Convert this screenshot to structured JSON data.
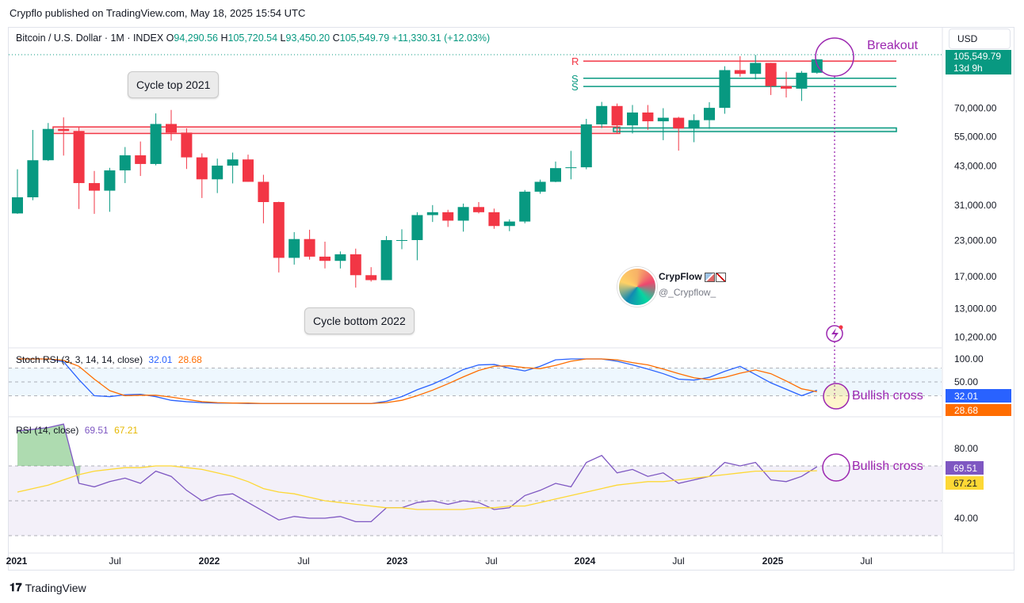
{
  "header": "Crypflo published on TradingView.com, May 18, 2025 15:54 UTC",
  "symbol": {
    "title": "Bitcoin / U.S. Dollar · 1M · INDEX",
    "o_label": "O",
    "o": "94,290.56",
    "h_label": "H",
    "h": "105,720.54",
    "l_label": "L",
    "l": "93,450.20",
    "c_label": "C",
    "c": "105,549.79",
    "change": "+11,330.31 (+12.03%)"
  },
  "currency_button": "USD",
  "price_badge": {
    "price": "105,549.79",
    "countdown": "13d 9h"
  },
  "author": {
    "name": "CrypFlow",
    "handle": "@_Crypflow_"
  },
  "callouts": {
    "top": "Cycle top 2021",
    "bottom": "Cycle bottom 2022"
  },
  "annotations": {
    "breakout": "Breakout",
    "bullish_cross_stoch": "Bullish cross",
    "bullish_cross_rsi": "Bullish cross"
  },
  "level_labels": {
    "r": "R",
    "s1": "S",
    "s2": "S"
  },
  "stoch_legend": {
    "title": "Stoch RSI (3, 3, 14, 14, close)",
    "k": "32.01",
    "d": "28.68"
  },
  "rsi_legend": {
    "title": "RSI (14, close)",
    "rsi": "69.51",
    "ma": "67.21"
  },
  "footer": "TradingView",
  "colors": {
    "up": "#089981",
    "down": "#f23645",
    "stoch_k": "#2962ff",
    "stoch_d": "#ff6d00",
    "rsi": "#7e57c2",
    "rsi_ma": "#fdd835",
    "annotation": "#9c27b0"
  },
  "chart_data": [
    {
      "type": "candlestick",
      "title": "Bitcoin / U.S. Dollar · 1M · INDEX",
      "scale": "log",
      "y_ticks": [
        10200,
        13000,
        17000,
        23000,
        31000,
        43000,
        55000,
        70000
      ],
      "x_ticks": [
        "2021",
        "Jul",
        "2022",
        "Jul",
        "2023",
        "Jul",
        "2024",
        "Jul",
        "2025",
        "Jul"
      ],
      "months": [
        "2021-01",
        "2021-02",
        "2021-03",
        "2021-04",
        "2021-05",
        "2021-06",
        "2021-07",
        "2021-08",
        "2021-09",
        "2021-10",
        "2021-11",
        "2021-12",
        "2022-01",
        "2022-02",
        "2022-03",
        "2022-04",
        "2022-05",
        "2022-06",
        "2022-07",
        "2022-08",
        "2022-09",
        "2022-10",
        "2022-11",
        "2022-12",
        "2023-01",
        "2023-02",
        "2023-03",
        "2023-04",
        "2023-05",
        "2023-06",
        "2023-07",
        "2023-08",
        "2023-09",
        "2023-10",
        "2023-11",
        "2023-12",
        "2024-01",
        "2024-02",
        "2024-03",
        "2024-04",
        "2024-05",
        "2024-06",
        "2024-07",
        "2024-08",
        "2024-09",
        "2024-10",
        "2024-11",
        "2024-12",
        "2025-01",
        "2025-02",
        "2025-03",
        "2025-04",
        "2025-05"
      ],
      "ohlc": [
        [
          28900,
          41900,
          28800,
          33100
        ],
        [
          33100,
          58300,
          32300,
          45200
        ],
        [
          45200,
          61800,
          44900,
          58800
        ],
        [
          58800,
          64800,
          47000,
          57800
        ],
        [
          57800,
          59500,
          30000,
          37300
        ],
        [
          37300,
          41300,
          28800,
          35000
        ],
        [
          35000,
          42400,
          29300,
          41500
        ],
        [
          41500,
          50500,
          37300,
          47100
        ],
        [
          47100,
          52900,
          39600,
          43800
        ],
        [
          43800,
          67000,
          43300,
          61300
        ],
        [
          61300,
          69000,
          53300,
          57000
        ],
        [
          57000,
          59100,
          42000,
          46300
        ],
        [
          46300,
          47900,
          32900,
          38500
        ],
        [
          38500,
          45800,
          34300,
          43200
        ],
        [
          43200,
          48200,
          37200,
          45500
        ],
        [
          45500,
          47400,
          37700,
          37700
        ],
        [
          37700,
          40000,
          26600,
          31800
        ],
        [
          31800,
          31900,
          17600,
          19900
        ],
        [
          19900,
          24700,
          18800,
          23300
        ],
        [
          23300,
          25200,
          19600,
          20100
        ],
        [
          20100,
          22800,
          18200,
          19400
        ],
        [
          19400,
          21000,
          18200,
          20500
        ],
        [
          20500,
          21500,
          15500,
          17200
        ],
        [
          17200,
          18400,
          16300,
          16500
        ],
        [
          16500,
          23900,
          16500,
          23100
        ],
        [
          23100,
          25300,
          21400,
          23100
        ],
        [
          23100,
          29200,
          19500,
          28500
        ],
        [
          28500,
          31000,
          26900,
          29200
        ],
        [
          29200,
          29800,
          25800,
          27200
        ],
        [
          27200,
          31400,
          24800,
          30500
        ],
        [
          30500,
          31800,
          28900,
          29200
        ],
        [
          29200,
          30100,
          25400,
          26000
        ],
        [
          26000,
          27500,
          24900,
          27000
        ],
        [
          27000,
          35200,
          26600,
          34700
        ],
        [
          34700,
          38400,
          34100,
          37700
        ],
        [
          37700,
          44700,
          37600,
          42300
        ],
        [
          42300,
          48900,
          38500,
          42600
        ],
        [
          42600,
          64000,
          41900,
          61100
        ],
        [
          61100,
          73800,
          59300,
          71300
        ],
        [
          71300,
          72800,
          56500,
          60600
        ],
        [
          60600,
          71900,
          56600,
          67500
        ],
        [
          67500,
          71900,
          58400,
          62700
        ],
        [
          62700,
          70000,
          53500,
          64600
        ],
        [
          64600,
          65100,
          49000,
          59000
        ],
        [
          59000,
          66500,
          52600,
          63300
        ],
        [
          63300,
          73600,
          58900,
          70200
        ],
        [
          70200,
          99600,
          66800,
          96400
        ],
        [
          96400,
          108300,
          91200,
          93400
        ],
        [
          93400,
          109600,
          89200,
          102400
        ],
        [
          102400,
          102500,
          78200,
          84300
        ],
        [
          84300,
          95000,
          76600,
          82500
        ],
        [
          82500,
          95700,
          74400,
          94290
        ],
        [
          94290,
          105720,
          93450,
          105550
        ]
      ],
      "resistance_zone": [
        56600,
        59800
      ],
      "support_zone": [
        57500,
        59300
      ],
      "levels": {
        "R": 104000,
        "S1": 90000,
        "S2": 84000
      }
    },
    {
      "type": "line",
      "title": "Stoch RSI (3, 3, 14, 14, close)",
      "y_ticks": [
        50,
        100
      ],
      "bands": [
        20,
        80
      ],
      "series": [
        {
          "name": "K",
          "values": [
            100,
            100,
            100,
            94,
            55,
            20,
            18,
            22,
            23,
            18,
            10,
            7,
            5,
            4,
            4,
            3,
            3,
            3,
            3,
            3,
            3,
            3,
            3,
            3,
            8,
            18,
            33,
            45,
            60,
            77,
            87,
            88,
            80,
            74,
            84,
            98,
            100,
            100,
            100,
            95,
            87,
            78,
            68,
            56,
            54,
            60,
            73,
            84,
            66,
            48,
            34,
            20,
            32.01
          ]
        },
        {
          "name": "D",
          "values": [
            100,
            100,
            100,
            97,
            84,
            56,
            31,
            20,
            21,
            21,
            17,
            12,
            7,
            5,
            4,
            4,
            3,
            3,
            3,
            3,
            3,
            3,
            3,
            3,
            5,
            10,
            20,
            32,
            46,
            61,
            75,
            84,
            85,
            81,
            79,
            86,
            95,
            100,
            100,
            98,
            92,
            87,
            78,
            68,
            59,
            55,
            60,
            69,
            76,
            68,
            52,
            35,
            28.68
          ]
        }
      ]
    },
    {
      "type": "line",
      "title": "RSI (14, close)",
      "y_ticks": [
        40,
        80
      ],
      "bands": [
        30,
        50,
        70
      ],
      "series": [
        {
          "name": "RSI",
          "values": [
            90,
            91,
            92,
            94,
            60,
            58,
            61,
            63,
            60,
            67,
            64,
            56,
            50,
            53,
            54,
            49,
            44,
            39,
            41,
            40,
            40,
            41,
            38,
            38,
            46,
            46,
            49,
            50,
            48,
            50,
            49,
            45,
            46,
            53,
            56,
            60,
            58,
            72,
            76,
            66,
            68,
            64,
            66,
            60,
            62,
            64,
            72,
            70,
            72,
            62,
            61,
            64,
            69.51
          ]
        },
        {
          "name": "RSI-based MA",
          "values": [
            55,
            57,
            59,
            62,
            65,
            67,
            68,
            69,
            69,
            70,
            70,
            69,
            68,
            66,
            64,
            61,
            57,
            55,
            54,
            52,
            50,
            49,
            48,
            47,
            46,
            46,
            45,
            45,
            45,
            45,
            46,
            46,
            47,
            47,
            49,
            51,
            53,
            55,
            57,
            59,
            60,
            61,
            61,
            62,
            63,
            64,
            65,
            66,
            67,
            67,
            67,
            67,
            67.21
          ]
        }
      ]
    }
  ]
}
